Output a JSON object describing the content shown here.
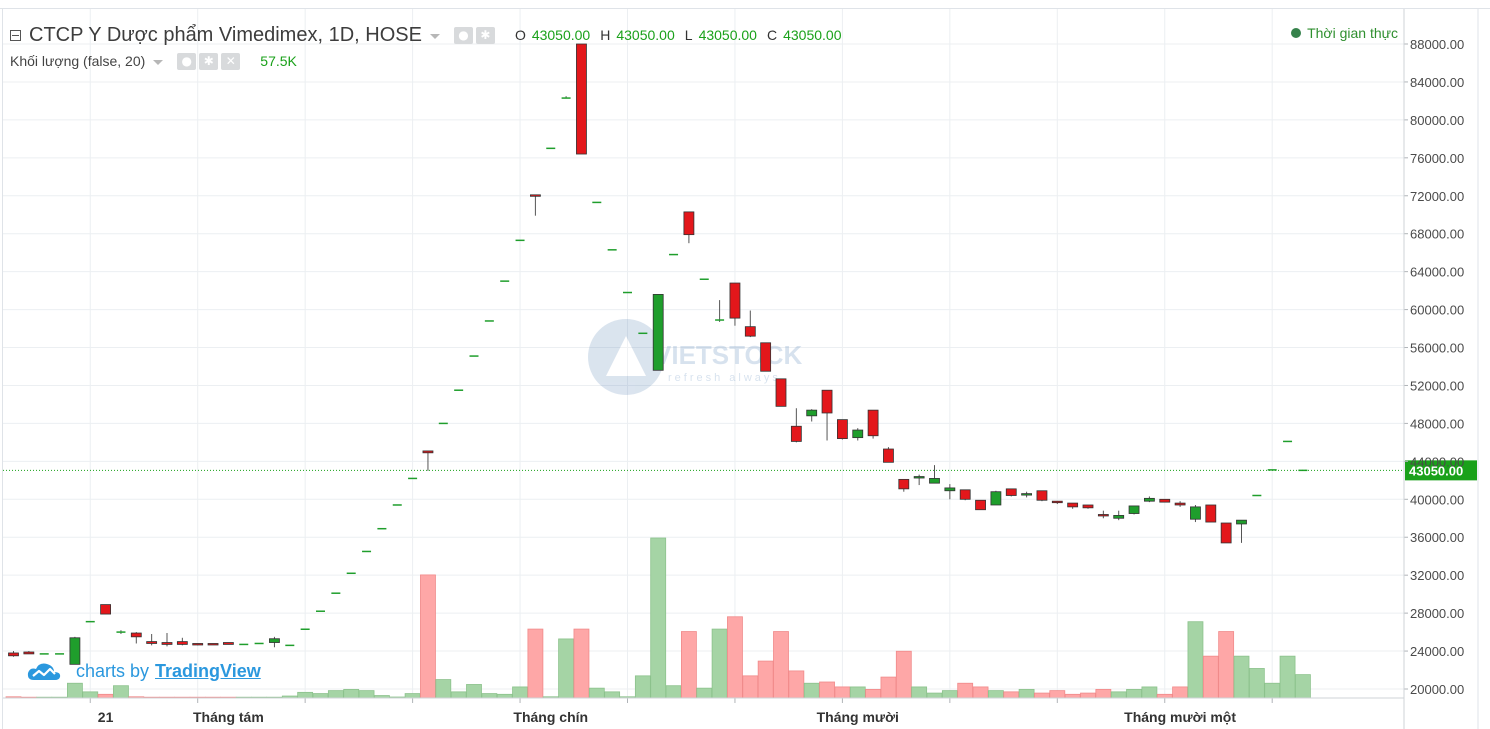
{
  "header": {
    "title": "CTCP Y Dược phẩm Vimedimex, 1D, HOSE",
    "ohlc": [
      {
        "key": "O",
        "value": "43050.00"
      },
      {
        "key": "H",
        "value": "43050.00"
      },
      {
        "key": "L",
        "value": "43050.00"
      },
      {
        "key": "C",
        "value": "43050.00"
      }
    ],
    "volume_study": "Khối lượng (false, 20)",
    "volume_value": "57.5K",
    "realtime_label": "Thời gian thực"
  },
  "attribution": {
    "prefix": "charts by",
    "link": "TradingView"
  },
  "watermark": {
    "text": "VIETSTOCK",
    "tagline": "refresh always"
  },
  "colors": {
    "up": "#1f9e2c",
    "down": "#e3171b",
    "up_volume": "#a5d4a5",
    "down_volume": "#fea7a7",
    "last_price": "#1aa11a",
    "grid": "#eceff2",
    "axis_text": "#4a4a4a"
  },
  "chart_data": {
    "type": "candlestick",
    "y_axis": {
      "ticks": [
        20000,
        24000,
        28000,
        32000,
        36000,
        40000,
        44000,
        48000,
        52000,
        56000,
        60000,
        64000,
        68000,
        72000,
        76000,
        80000,
        84000,
        88000
      ],
      "tick_labels": [
        "20000.00",
        "24000.00",
        "28000.00",
        "32000.00",
        "36000.00",
        "40000.00",
        "44000.00",
        "48000.00",
        "52000.00",
        "56000.00",
        "60000.00",
        "64000.00",
        "68000.00",
        "72000.00",
        "76000.00",
        "80000.00",
        "84000.00",
        "88000.00"
      ],
      "range": [
        19000,
        90000
      ],
      "position": "right",
      "last_price": 43050,
      "last_price_label": "43050.00"
    },
    "x_axis": {
      "labels": [
        {
          "text": "21",
          "bar": 6
        },
        {
          "text": "Tháng tám",
          "bar": 14
        },
        {
          "text": "Tháng chín",
          "bar": 35
        },
        {
          "text": "Tháng mười",
          "bar": 55
        },
        {
          "text": "Tháng mười một",
          "bar": 76
        }
      ]
    },
    "candles": [
      {
        "o": 23800,
        "h": 24000,
        "l": 23400,
        "c": 23500
      },
      {
        "o": 23900,
        "h": 24000,
        "l": 23700,
        "c": 23700
      },
      {
        "o": 23700,
        "h": 23700,
        "l": 23700,
        "c": 23700
      },
      {
        "o": 23700,
        "h": 23700,
        "l": 23700,
        "c": 23700
      },
      {
        "o": 22600,
        "h": 25500,
        "l": 22600,
        "c": 25400
      },
      {
        "o": 27100,
        "h": 27100,
        "l": 27100,
        "c": 27100
      },
      {
        "o": 28900,
        "h": 28900,
        "l": 27900,
        "c": 27900
      },
      {
        "o": 26000,
        "h": 26200,
        "l": 25800,
        "c": 26000
      },
      {
        "o": 25900,
        "h": 26000,
        "l": 24800,
        "c": 25500
      },
      {
        "o": 25000,
        "h": 25800,
        "l": 24600,
        "c": 24800
      },
      {
        "o": 24900,
        "h": 25900,
        "l": 24500,
        "c": 24700
      },
      {
        "o": 25000,
        "h": 25400,
        "l": 24600,
        "c": 24700
      },
      {
        "o": 24800,
        "h": 24800,
        "l": 24600,
        "c": 24700
      },
      {
        "o": 24800,
        "h": 24800,
        "l": 24700,
        "c": 24700
      },
      {
        "o": 24900,
        "h": 24900,
        "l": 24700,
        "c": 24700
      },
      {
        "o": 24700,
        "h": 24700,
        "l": 24700,
        "c": 24700
      },
      {
        "o": 24800,
        "h": 24800,
        "l": 24800,
        "c": 24800
      },
      {
        "o": 24900,
        "h": 25500,
        "l": 24400,
        "c": 25300
      },
      {
        "o": 24600,
        "h": 24600,
        "l": 24600,
        "c": 24600
      },
      {
        "o": 26300,
        "h": 26300,
        "l": 26300,
        "c": 26300
      },
      {
        "o": 28200,
        "h": 28200,
        "l": 28200,
        "c": 28200
      },
      {
        "o": 30100,
        "h": 30100,
        "l": 30100,
        "c": 30100
      },
      {
        "o": 32200,
        "h": 32200,
        "l": 32200,
        "c": 32200
      },
      {
        "o": 34500,
        "h": 34500,
        "l": 34500,
        "c": 34500
      },
      {
        "o": 36900,
        "h": 36900,
        "l": 36900,
        "c": 36900
      },
      {
        "o": 39400,
        "h": 39400,
        "l": 39400,
        "c": 39400
      },
      {
        "o": 42200,
        "h": 42200,
        "l": 42200,
        "c": 42200
      },
      {
        "o": 45100,
        "h": 45100,
        "l": 43000,
        "c": 44900
      },
      {
        "o": 48000,
        "h": 48000,
        "l": 48000,
        "c": 48000
      },
      {
        "o": 51500,
        "h": 51500,
        "l": 51500,
        "c": 51500
      },
      {
        "o": 55100,
        "h": 55100,
        "l": 55100,
        "c": 55100
      },
      {
        "o": 58800,
        "h": 58800,
        "l": 58800,
        "c": 58800
      },
      {
        "o": 63000,
        "h": 63000,
        "l": 63000,
        "c": 63000
      },
      {
        "o": 67300,
        "h": 67300,
        "l": 67300,
        "c": 67300
      },
      {
        "o": 72100,
        "h": 72100,
        "l": 69900,
        "c": 72000
      },
      {
        "o": 77000,
        "h": 77000,
        "l": 77000,
        "c": 77000
      },
      {
        "o": 82300,
        "h": 82500,
        "l": 82300,
        "c": 82300
      },
      {
        "o": 88000,
        "h": 88000,
        "l": 76400,
        "c": 76400
      },
      {
        "o": 71300,
        "h": 71300,
        "l": 71300,
        "c": 71300
      },
      {
        "o": 66300,
        "h": 66300,
        "l": 66300,
        "c": 66300
      },
      {
        "o": 61800,
        "h": 61800,
        "l": 61800,
        "c": 61800
      },
      {
        "o": 57500,
        "h": 57500,
        "l": 57500,
        "c": 57500
      },
      {
        "o": 53600,
        "h": 61600,
        "l": 53600,
        "c": 61600
      },
      {
        "o": 65800,
        "h": 65800,
        "l": 65800,
        "c": 65800
      },
      {
        "o": 70300,
        "h": 70300,
        "l": 67000,
        "c": 67900
      },
      {
        "o": 63200,
        "h": 63200,
        "l": 63200,
        "c": 63200
      },
      {
        "o": 58900,
        "h": 61000,
        "l": 58700,
        "c": 58900
      },
      {
        "o": 62800,
        "h": 62800,
        "l": 58300,
        "c": 59100
      },
      {
        "o": 58200,
        "h": 59900,
        "l": 57100,
        "c": 57200
      },
      {
        "o": 56500,
        "h": 56500,
        "l": 53500,
        "c": 53500
      },
      {
        "o": 52700,
        "h": 52700,
        "l": 49800,
        "c": 49800
      },
      {
        "o": 47700,
        "h": 49600,
        "l": 46000,
        "c": 46100
      },
      {
        "o": 48800,
        "h": 49500,
        "l": 48200,
        "c": 49400
      },
      {
        "o": 51500,
        "h": 51500,
        "l": 46200,
        "c": 49100
      },
      {
        "o": 48400,
        "h": 48400,
        "l": 46300,
        "c": 46400
      },
      {
        "o": 46500,
        "h": 47500,
        "l": 46200,
        "c": 47300
      },
      {
        "o": 49400,
        "h": 49400,
        "l": 46400,
        "c": 46700
      },
      {
        "o": 45300,
        "h": 45500,
        "l": 43900,
        "c": 43900
      },
      {
        "o": 42100,
        "h": 42100,
        "l": 40800,
        "c": 41100
      },
      {
        "o": 42300,
        "h": 42600,
        "l": 41500,
        "c": 42400
      },
      {
        "o": 41700,
        "h": 43600,
        "l": 41700,
        "c": 42200
      },
      {
        "o": 40900,
        "h": 41600,
        "l": 40000,
        "c": 41200
      },
      {
        "o": 41000,
        "h": 41000,
        "l": 39900,
        "c": 40000
      },
      {
        "o": 39900,
        "h": 39900,
        "l": 38900,
        "c": 38900
      },
      {
        "o": 39400,
        "h": 40900,
        "l": 39400,
        "c": 40800
      },
      {
        "o": 41100,
        "h": 41100,
        "l": 40300,
        "c": 40400
      },
      {
        "o": 40500,
        "h": 40800,
        "l": 40200,
        "c": 40600
      },
      {
        "o": 40900,
        "h": 40900,
        "l": 39800,
        "c": 39900
      },
      {
        "o": 39800,
        "h": 39800,
        "l": 39500,
        "c": 39700
      },
      {
        "o": 39600,
        "h": 39600,
        "l": 39000,
        "c": 39200
      },
      {
        "o": 39400,
        "h": 39400,
        "l": 39000,
        "c": 39100
      },
      {
        "o": 38400,
        "h": 38800,
        "l": 38000,
        "c": 38300
      },
      {
        "o": 38000,
        "h": 38800,
        "l": 37800,
        "c": 38300
      },
      {
        "o": 38500,
        "h": 39300,
        "l": 38400,
        "c": 39300
      },
      {
        "o": 39800,
        "h": 40300,
        "l": 39700,
        "c": 40100
      },
      {
        "o": 40000,
        "h": 40000,
        "l": 39700,
        "c": 39700
      },
      {
        "o": 39600,
        "h": 39800,
        "l": 39200,
        "c": 39400
      },
      {
        "o": 37900,
        "h": 39400,
        "l": 37600,
        "c": 39200
      },
      {
        "o": 39400,
        "h": 39400,
        "l": 37600,
        "c": 37600
      },
      {
        "o": 37500,
        "h": 37500,
        "l": 35400,
        "c": 35400
      },
      {
        "o": 37400,
        "h": 37800,
        "l": 35400,
        "c": 37800
      },
      {
        "o": 40400,
        "h": 40400,
        "l": 40400,
        "c": 40400
      },
      {
        "o": 43100,
        "h": 43100,
        "l": 43100,
        "c": 43100
      },
      {
        "o": 46100,
        "h": 46100,
        "l": 46100,
        "c": 46100
      },
      {
        "o": 43050,
        "h": 43050,
        "l": 43050,
        "c": 43050
      }
    ],
    "volume_series": {
      "name": "Khối lượng",
      "values": [
        0.5,
        0.2,
        0.0,
        0.0,
        6.0,
        2.5,
        1.5,
        5.0,
        0.5,
        0.3,
        0.3,
        0.3,
        0.2,
        0.2,
        0.3,
        0.3,
        0.3,
        0.3,
        0.8,
        2.3,
        1.8,
        3.0,
        3.5,
        3.0,
        1.0,
        0.4,
        1.8,
        50.0,
        7.5,
        2.5,
        5.5,
        1.8,
        1.5,
        4.5,
        28.0,
        0.5,
        24.0,
        28.0,
        4.0,
        2.5,
        0.5,
        9.0,
        65.0,
        5.0,
        27.0,
        4.0,
        28.0,
        33.0,
        9.0,
        15.0,
        27.0,
        11.0,
        6.0,
        6.5,
        4.5,
        4.5,
        3.5,
        8.5,
        19.0,
        4.5,
        2.0,
        3.0,
        6.0,
        4.5,
        3.0,
        2.5,
        3.5,
        2.0,
        3.0,
        1.5,
        2.0,
        3.5,
        2.5,
        3.5,
        4.5,
        1.5,
        4.5,
        31.0,
        17.0,
        27.0,
        17.0,
        12.0,
        6.0,
        17.0,
        9.5
      ]
    }
  }
}
